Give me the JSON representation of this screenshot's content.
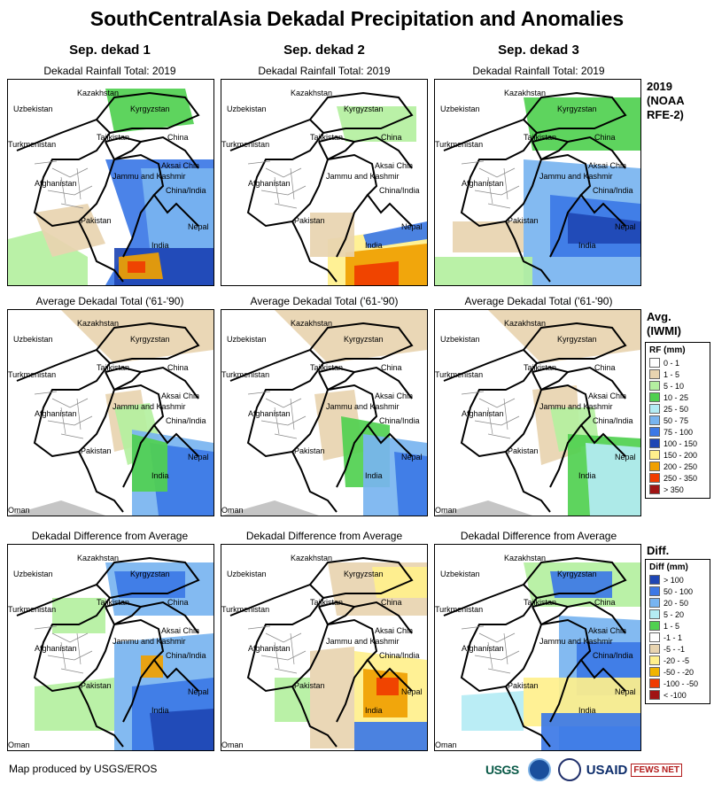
{
  "title": "SouthCentralAsia Dekadal Precipitation and Anomalies",
  "columns": [
    "Sep. dekad 1",
    "Sep. dekad 2",
    "Sep. dekad 3"
  ],
  "rows": [
    {
      "label": "Dekadal Rainfall Total: 2019",
      "side": [
        "2019",
        "(NOAA",
        "RFE-2)"
      ]
    },
    {
      "label": "Average Dekadal Total ('61-'90)",
      "side": [
        "Avg.",
        "(IWMI)"
      ]
    },
    {
      "label": "Dekadal Difference from Average",
      "side": [
        "Diff."
      ]
    }
  ],
  "map_labels": {
    "kazakhstan": "Kazakhstan",
    "uzbekistan": "Uzbekistan",
    "kyrgyzstan": "Kyrgyzstan",
    "turkmenistan": "Turkmenistan",
    "tajikistan": "Tajikistan",
    "china": "China",
    "aksai_chin": "Aksai Chin",
    "jammu_kashmir": "Jammu and Kashmir",
    "china_india": "China/India",
    "afghanistan": "Afghanistan",
    "pakistan": "Pakistan",
    "nepal": "Nepal",
    "india": "India",
    "oman": "Oman"
  },
  "rf_legend": {
    "title": "RF (mm)",
    "items": [
      {
        "label": "0 - 1",
        "color": "#ffffff"
      },
      {
        "label": "1 - 5",
        "color": "#e8d4b0"
      },
      {
        "label": "5 - 10",
        "color": "#b4f0a0"
      },
      {
        "label": "10 - 25",
        "color": "#50d050"
      },
      {
        "label": "25 - 50",
        "color": "#b4ecf4"
      },
      {
        "label": "50 - 75",
        "color": "#78b4f0"
      },
      {
        "label": "75 - 100",
        "color": "#3c78e6"
      },
      {
        "label": "100 - 150",
        "color": "#1e46b4"
      },
      {
        "label": "150 - 200",
        "color": "#fff08c"
      },
      {
        "label": "200 - 250",
        "color": "#f0a000"
      },
      {
        "label": "250 - 350",
        "color": "#f03c00"
      },
      {
        "label": "> 350",
        "color": "#a01414"
      }
    ]
  },
  "diff_legend": {
    "title": "Diff (mm)",
    "items": [
      {
        "label": "> 100",
        "color": "#1e46b4"
      },
      {
        "label": "50 - 100",
        "color": "#3c78e6"
      },
      {
        "label": "20 - 50",
        "color": "#78b4f0"
      },
      {
        "label": "5 - 20",
        "color": "#b4ecf4"
      },
      {
        "label": "1 - 5",
        "color": "#50d050"
      },
      {
        "label": "-1 - 1",
        "color": "#ffffff"
      },
      {
        "label": "-5 - -1",
        "color": "#e8d4b0"
      },
      {
        "label": "-20 - -5",
        "color": "#fff08c"
      },
      {
        "label": "-50 - -20",
        "color": "#f0b400"
      },
      {
        "label": "-100 - -50",
        "color": "#f03c00"
      },
      {
        "label": "< -100",
        "color": "#a01414"
      }
    ]
  },
  "credit": "Map produced by USGS/EROS",
  "logos": {
    "usgs": "USGS",
    "usaid": "USAID",
    "fews": "FEWS NET"
  }
}
